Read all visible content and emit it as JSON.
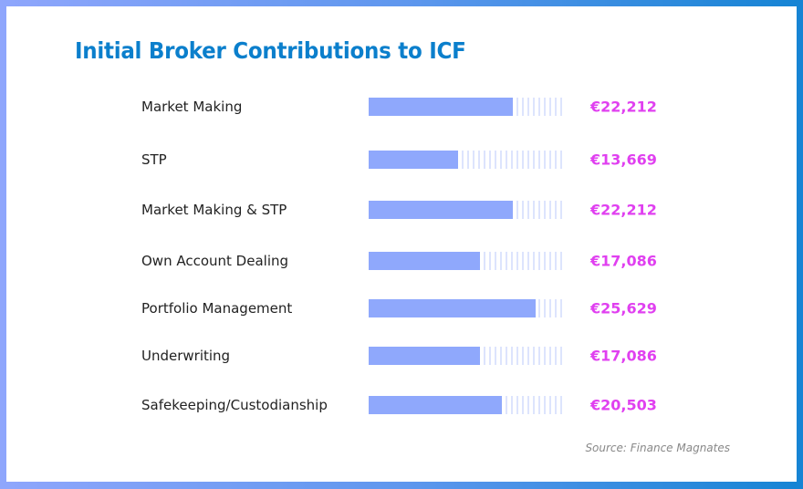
{
  "chart_data": {
    "type": "bar",
    "orientation": "horizontal",
    "title": "Initial Broker Contributions to ICF",
    "categories": [
      "Market Making",
      "STP",
      "Market Making & STP",
      "Own Account Dealing",
      "Portfolio Management",
      "Underwriting",
      "Safekeeping/Custodianship"
    ],
    "values": [
      22212,
      13669,
      22212,
      17086,
      25629,
      17086,
      20503
    ],
    "value_labels": [
      "€22,212",
      "€13,669",
      "€22,212",
      "€17,086",
      "€25,629",
      "€17,086",
      "€20,503"
    ],
    "xlim": [
      0,
      30000
    ],
    "xlabel": "",
    "ylabel": "",
    "source": "Source: Finance Magnates",
    "colors": {
      "bar": "#8fa8fc",
      "track": "#dde4fd",
      "value": "#e040f0",
      "title": "#0b7fcc"
    }
  }
}
